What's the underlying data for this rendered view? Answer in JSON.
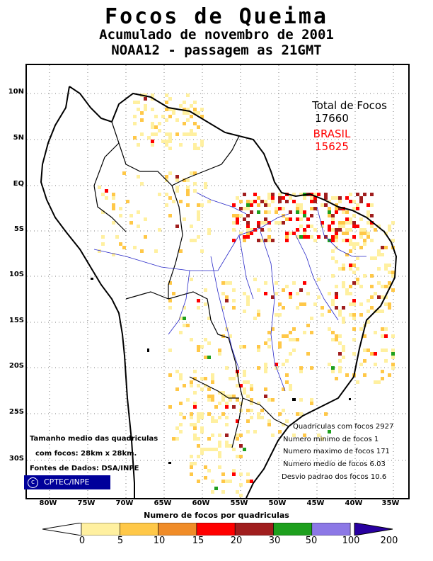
{
  "header": {
    "title": "Focos de Queima",
    "subtitle1": "Acumulado de novembro de 2001",
    "subtitle2": "NOAA12 - passagem as 21GMT"
  },
  "totals": {
    "label": "Total de Focos",
    "total": "17660",
    "country": "BRASIL",
    "country_total": "15625",
    "country_color": "#ff0000"
  },
  "lat_labels": [
    "10N",
    "5N",
    "EQ",
    "5S",
    "10S",
    "15S",
    "20S",
    "25S",
    "30S"
  ],
  "lon_labels": [
    "80W",
    "75W",
    "70W",
    "65W",
    "60W",
    "55W",
    "50W",
    "45W",
    "40W",
    "35W"
  ],
  "stats": [
    "Quadriculas com focos 2927",
    "Numero minimo de focos 1",
    "Numero maximo de focos 171",
    "Numero medio de focos 6.03",
    "Desvio padrao dos focos 10.6"
  ],
  "notes": {
    "line1": "Tamanho medio das quadriculas",
    "line2": "com focos: 28km x 28km.",
    "line3": "Fontes de Dados: DSA/INPE"
  },
  "logo": {
    "symbol": "c",
    "text": "CPTEC/INPE"
  },
  "scale": {
    "title": "Numero de focos por quadriculas",
    "ticks": [
      "0",
      "5",
      "10",
      "15",
      "20",
      "30",
      "50",
      "100",
      "200"
    ],
    "colors": [
      "#fff0a0",
      "#ffc848",
      "#f08c28",
      "#ff0000",
      "#a01e1e",
      "#1ea01e",
      "#8c78e6",
      "#2800a0"
    ]
  }
}
